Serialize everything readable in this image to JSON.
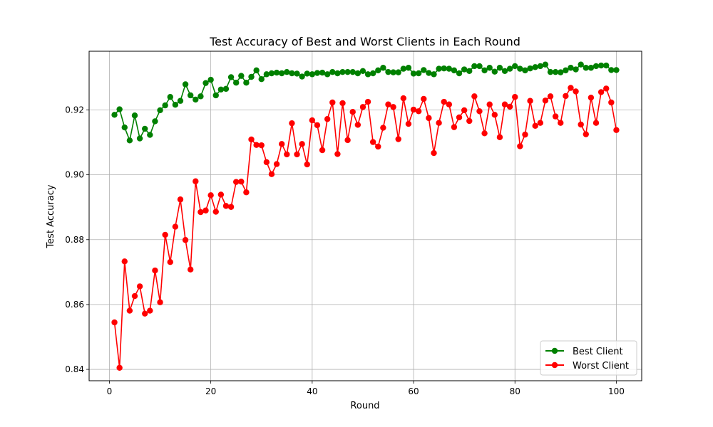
{
  "chart_data": {
    "type": "line",
    "title": "Test Accuracy of Best and Worst Clients in Each Round",
    "xlabel": "Round",
    "ylabel": "Test Accuracy",
    "xlim": [
      -4,
      105
    ],
    "ylim": [
      0.8365,
      0.9381
    ],
    "xticks": [
      0,
      20,
      40,
      60,
      80,
      100
    ],
    "yticks": [
      0.84,
      0.86,
      0.88,
      0.9,
      0.92
    ],
    "xtick_labels": [
      "0",
      "20",
      "40",
      "60",
      "80",
      "100"
    ],
    "ytick_labels": [
      "0.84",
      "0.86",
      "0.88",
      "0.90",
      "0.92"
    ],
    "grid": true,
    "legend_position": "lower-right",
    "x": [
      1,
      2,
      3,
      4,
      5,
      6,
      7,
      8,
      9,
      10,
      11,
      12,
      13,
      14,
      15,
      16,
      17,
      18,
      19,
      20,
      21,
      22,
      23,
      24,
      25,
      26,
      27,
      28,
      29,
      30,
      31,
      32,
      33,
      34,
      35,
      36,
      37,
      38,
      39,
      40,
      41,
      42,
      43,
      44,
      45,
      46,
      47,
      48,
      49,
      50,
      51,
      52,
      53,
      54,
      55,
      56,
      57,
      58,
      59,
      60,
      61,
      62,
      63,
      64,
      65,
      66,
      67,
      68,
      69,
      70,
      71,
      72,
      73,
      74,
      75,
      76,
      77,
      78,
      79,
      80,
      81,
      82,
      83,
      84,
      85,
      86,
      87,
      88,
      89,
      90,
      91,
      92,
      93,
      94,
      95,
      96,
      97,
      98,
      99,
      100
    ],
    "series": [
      {
        "name": "Best Client",
        "color": "#008000",
        "values": [
          0.9185,
          0.9202,
          0.9146,
          0.9106,
          0.9183,
          0.9112,
          0.9142,
          0.9123,
          0.9165,
          0.9199,
          0.9214,
          0.924,
          0.9216,
          0.9228,
          0.9279,
          0.9245,
          0.9232,
          0.9242,
          0.9283,
          0.9293,
          0.9245,
          0.9263,
          0.9265,
          0.9301,
          0.9284,
          0.9305,
          0.9284,
          0.9302,
          0.9322,
          0.9295,
          0.931,
          0.9313,
          0.9315,
          0.9313,
          0.9317,
          0.9313,
          0.9312,
          0.9303,
          0.9312,
          0.931,
          0.9314,
          0.9315,
          0.931,
          0.9317,
          0.9313,
          0.9317,
          0.9317,
          0.9317,
          0.9313,
          0.932,
          0.931,
          0.9313,
          0.9322,
          0.933,
          0.9317,
          0.9316,
          0.9316,
          0.9327,
          0.933,
          0.9312,
          0.9313,
          0.9323,
          0.9314,
          0.931,
          0.9327,
          0.9328,
          0.9327,
          0.9322,
          0.9313,
          0.9325,
          0.932,
          0.9335,
          0.9335,
          0.9322,
          0.933,
          0.9318,
          0.933,
          0.932,
          0.9327,
          0.9335,
          0.9327,
          0.9322,
          0.9328,
          0.9332,
          0.9335,
          0.934,
          0.9317,
          0.9317,
          0.9316,
          0.9322,
          0.933,
          0.9325,
          0.934,
          0.933,
          0.933,
          0.9335,
          0.9337,
          0.9337,
          0.9323,
          0.9323
        ]
      },
      {
        "name": "Worst Client",
        "color": "#ff0000",
        "values": [
          0.8545,
          0.8405,
          0.8733,
          0.8581,
          0.8626,
          0.8656,
          0.8572,
          0.8581,
          0.8705,
          0.8607,
          0.8815,
          0.8731,
          0.884,
          0.8924,
          0.8799,
          0.8708,
          0.898,
          0.8885,
          0.889,
          0.8937,
          0.8886,
          0.8939,
          0.8904,
          0.8901,
          0.8978,
          0.8979,
          0.8946,
          0.9109,
          0.9092,
          0.9091,
          0.9039,
          0.9002,
          0.9033,
          0.9095,
          0.9063,
          0.9159,
          0.9063,
          0.9095,
          0.9032,
          0.9168,
          0.9153,
          0.9076,
          0.9172,
          0.9223,
          0.9064,
          0.9221,
          0.9107,
          0.9194,
          0.9154,
          0.9209,
          0.9225,
          0.9101,
          0.9087,
          0.9145,
          0.9217,
          0.9209,
          0.911,
          0.9236,
          0.9157,
          0.9201,
          0.9196,
          0.9234,
          0.9175,
          0.9067,
          0.916,
          0.9225,
          0.9217,
          0.9147,
          0.9177,
          0.9199,
          0.9166,
          0.9242,
          0.9196,
          0.9128,
          0.9217,
          0.9185,
          0.9116,
          0.9217,
          0.921,
          0.924,
          0.9088,
          0.9124,
          0.9228,
          0.9151,
          0.916,
          0.9229,
          0.9242,
          0.918,
          0.916,
          0.9243,
          0.9268,
          0.9257,
          0.9155,
          0.9125,
          0.9238,
          0.916,
          0.9255,
          0.9266,
          0.9223,
          0.9138
        ]
      }
    ]
  }
}
